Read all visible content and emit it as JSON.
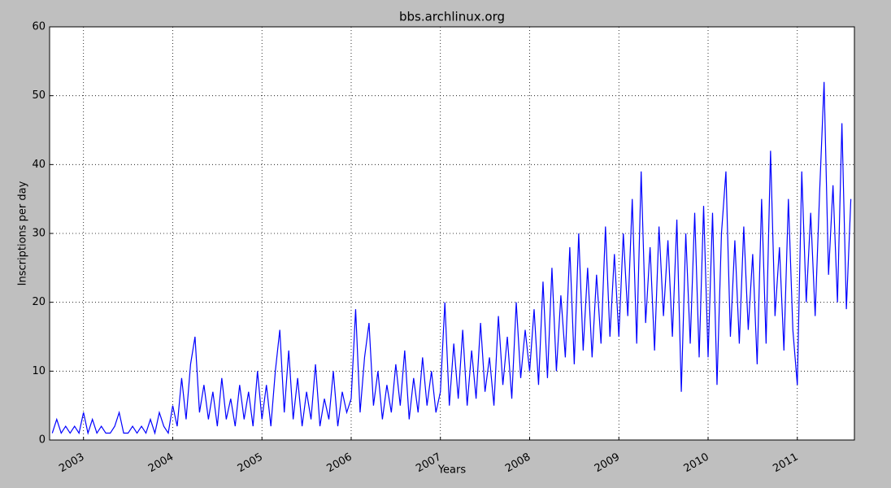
{
  "chart_data": {
    "type": "line",
    "title": "bbs.archlinux.org",
    "x_label": "Years",
    "y_label": "Inscriptions per day",
    "x": [
      2002.65,
      2002.7,
      2002.75,
      2002.8,
      2002.85,
      2002.9,
      2002.95,
      2003.0,
      2003.05,
      2003.1,
      2003.15,
      2003.2,
      2003.25,
      2003.3,
      2003.35,
      2003.4,
      2003.45,
      2003.5,
      2003.55,
      2003.6,
      2003.65,
      2003.7,
      2003.75,
      2003.8,
      2003.85,
      2003.9,
      2003.95,
      2004.0,
      2004.05,
      2004.1,
      2004.15,
      2004.2,
      2004.25,
      2004.3,
      2004.35,
      2004.4,
      2004.45,
      2004.5,
      2004.55,
      2004.6,
      2004.65,
      2004.7,
      2004.75,
      2004.8,
      2004.85,
      2004.9,
      2004.95,
      2005.0,
      2005.05,
      2005.1,
      2005.15,
      2005.2,
      2005.25,
      2005.3,
      2005.35,
      2005.4,
      2005.45,
      2005.5,
      2005.55,
      2005.6,
      2005.65,
      2005.7,
      2005.75,
      2005.8,
      2005.85,
      2005.9,
      2005.95,
      2006.0,
      2006.05,
      2006.1,
      2006.15,
      2006.2,
      2006.25,
      2006.3,
      2006.35,
      2006.4,
      2006.45,
      2006.5,
      2006.55,
      2006.6,
      2006.65,
      2006.7,
      2006.75,
      2006.8,
      2006.85,
      2006.9,
      2006.95,
      2007.0,
      2007.05,
      2007.1,
      2007.15,
      2007.2,
      2007.25,
      2007.3,
      2007.35,
      2007.4,
      2007.45,
      2007.5,
      2007.55,
      2007.6,
      2007.65,
      2007.7,
      2007.75,
      2007.8,
      2007.85,
      2007.9,
      2007.95,
      2008.0,
      2008.05,
      2008.1,
      2008.15,
      2008.2,
      2008.25,
      2008.3,
      2008.35,
      2008.4,
      2008.45,
      2008.5,
      2008.55,
      2008.6,
      2008.65,
      2008.7,
      2008.75,
      2008.8,
      2008.85,
      2008.9,
      2008.95,
      2009.0,
      2009.05,
      2009.1,
      2009.15,
      2009.2,
      2009.25,
      2009.3,
      2009.35,
      2009.4,
      2009.45,
      2009.5,
      2009.55,
      2009.6,
      2009.65,
      2009.7,
      2009.75,
      2009.8,
      2009.85,
      2009.9,
      2009.95,
      2010.0,
      2010.05,
      2010.1,
      2010.15,
      2010.2,
      2010.25,
      2010.3,
      2010.35,
      2010.4,
      2010.45,
      2010.5,
      2010.55,
      2010.6,
      2010.65,
      2010.7,
      2010.75,
      2010.8,
      2010.85,
      2010.9,
      2010.95,
      2011.0,
      2011.05,
      2011.1,
      2011.15,
      2011.2,
      2011.25,
      2011.3,
      2011.35,
      2011.4,
      2011.45,
      2011.5,
      2011.55,
      2011.6
    ],
    "series": [
      {
        "name": "Inscriptions",
        "color": "#0000ff",
        "values": [
          1,
          3,
          1,
          2,
          1,
          2,
          1,
          4,
          1,
          3,
          1,
          2,
          1,
          1,
          2,
          4,
          1,
          1,
          2,
          1,
          2,
          1,
          3,
          1,
          4,
          2,
          1,
          5,
          2,
          9,
          3,
          11,
          15,
          4,
          8,
          3,
          7,
          2,
          9,
          3,
          6,
          2,
          8,
          3,
          7,
          2,
          10,
          3,
          8,
          2,
          10,
          16,
          4,
          13,
          3,
          9,
          2,
          7,
          3,
          11,
          2,
          6,
          3,
          10,
          2,
          7,
          4,
          6,
          19,
          4,
          12,
          17,
          5,
          10,
          3,
          8,
          4,
          11,
          5,
          13,
          3,
          9,
          4,
          12,
          5,
          10,
          4,
          7,
          20,
          5,
          14,
          6,
          16,
          5,
          13,
          6,
          17,
          7,
          12,
          5,
          18,
          8,
          15,
          6,
          20,
          9,
          16,
          10,
          19,
          8,
          23,
          9,
          25,
          10,
          21,
          12,
          28,
          11,
          30,
          13,
          25,
          12,
          24,
          14,
          31,
          15,
          27,
          15,
          30,
          18,
          35,
          14,
          39,
          17,
          28,
          13,
          31,
          18,
          29,
          15,
          32,
          7,
          30,
          14,
          33,
          12,
          34,
          12,
          33,
          8,
          30,
          39,
          15,
          29,
          14,
          31,
          16,
          27,
          11,
          35,
          14,
          42,
          18,
          28,
          13,
          35,
          16,
          8,
          39,
          20,
          33,
          18,
          36,
          52,
          24,
          37,
          20,
          46,
          19,
          35
        ]
      }
    ],
    "xlim": [
      2002.62,
      2011.64
    ],
    "xticks": [
      2003,
      2004,
      2005,
      2006,
      2007,
      2008,
      2009,
      2010,
      2011
    ],
    "ylim": [
      0,
      60
    ],
    "yticks": [
      0,
      10,
      20,
      30,
      40,
      50,
      60
    ],
    "grid": true
  }
}
